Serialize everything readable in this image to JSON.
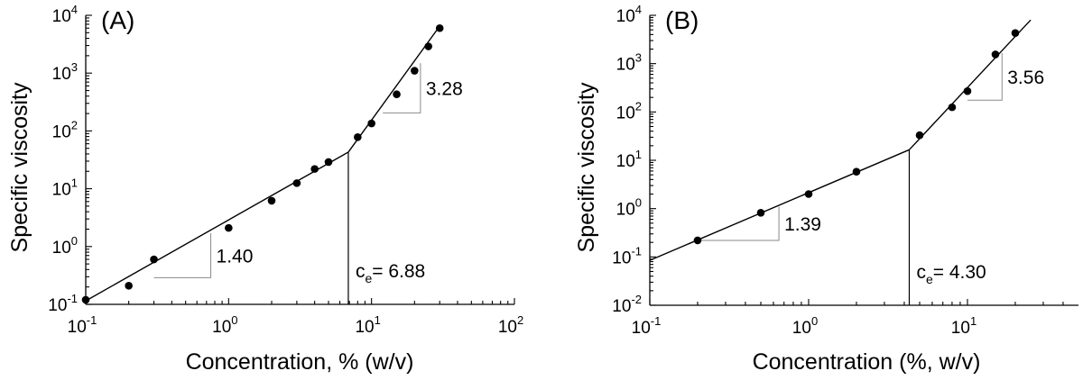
{
  "chart_data": [
    {
      "type": "scatter",
      "panel_label": "(A)",
      "xlabel": "Concentration, % (w/v)",
      "ylabel": "Specific viscosity",
      "xscale": "log",
      "yscale": "log",
      "xlim": [
        0.1,
        100
      ],
      "ylim": [
        0.1,
        10000
      ],
      "x_ticks": [
        {
          "base": "10",
          "exp": "-1"
        },
        {
          "base": "10",
          "exp": "0"
        },
        {
          "base": "10",
          "exp": "1"
        },
        {
          "base": "10",
          "exp": "2"
        }
      ],
      "y_ticks": [
        {
          "base": "10",
          "exp": "-1"
        },
        {
          "base": "10",
          "exp": "0"
        },
        {
          "base": "10",
          "exp": "1"
        },
        {
          "base": "10",
          "exp": "2"
        },
        {
          "base": "10",
          "exp": "3"
        },
        {
          "base": "10",
          "exp": "4"
        }
      ],
      "points": {
        "x": [
          0.1,
          0.2,
          0.3,
          1.0,
          2.0,
          3.0,
          4.0,
          5.0,
          8.0,
          10.0,
          15.0,
          20.0,
          25.0,
          30.0
        ],
        "y": [
          0.12,
          0.21,
          0.6,
          2.1,
          6.2,
          12.5,
          22,
          29,
          78,
          135,
          430,
          1100,
          2900,
          6000
        ]
      },
      "fits": [
        {
          "name": "dilute",
          "x": [
            0.1,
            6.88
          ],
          "y": [
            0.115,
            43
          ]
        },
        {
          "name": "entangled",
          "x": [
            6.88,
            30.0
          ],
          "y": [
            43,
            6500
          ]
        }
      ],
      "slopes": [
        {
          "label": "1.40",
          "x": [
            0.3,
            0.75
          ],
          "y": [
            0.29,
            1.7
          ]
        },
        {
          "label": "3.28",
          "x": [
            12.0,
            22.0
          ],
          "y": [
            205,
            1490
          ]
        }
      ],
      "ce": {
        "x": 6.88,
        "y": 43,
        "prefix": "c",
        "sub": "e",
        "text": "= 6.88"
      }
    },
    {
      "type": "scatter",
      "panel_label": "(B)",
      "xlabel": "Concentration (%, w/v)",
      "ylabel": "Specific viscosity",
      "xscale": "log",
      "yscale": "log",
      "xlim": [
        0.1,
        50
      ],
      "ylim": [
        0.01,
        10000
      ],
      "x_ticks": [
        {
          "base": "10",
          "exp": "-1"
        },
        {
          "base": "10",
          "exp": "0"
        },
        {
          "base": "10",
          "exp": "1"
        }
      ],
      "y_ticks": [
        {
          "base": "10",
          "exp": "-2"
        },
        {
          "base": "10",
          "exp": "-1"
        },
        {
          "base": "10",
          "exp": "0"
        },
        {
          "base": "10",
          "exp": "1"
        },
        {
          "base": "10",
          "exp": "2"
        },
        {
          "base": "10",
          "exp": "3"
        },
        {
          "base": "10",
          "exp": "4"
        }
      ],
      "points": {
        "x": [
          0.2,
          0.5,
          1.0,
          2.0,
          5.0,
          8.0,
          10.0,
          15.0,
          20.0
        ],
        "y": [
          0.22,
          0.82,
          2.0,
          5.8,
          33,
          125,
          270,
          1550,
          4300
        ]
      },
      "fits": [
        {
          "name": "dilute",
          "x": [
            0.1,
            4.3
          ],
          "y": [
            0.085,
            16.5
          ]
        },
        {
          "name": "entangled",
          "x": [
            4.3,
            25.0
          ],
          "y": [
            16.5,
            8000
          ]
        }
      ],
      "slopes": [
        {
          "label": "1.39",
          "x": [
            0.2,
            0.65
          ],
          "y": [
            0.22,
            1.1
          ]
        },
        {
          "label": "3.56",
          "x": [
            10.0,
            16.5
          ],
          "y": [
            175,
            1660
          ]
        }
      ],
      "ce": {
        "x": 4.3,
        "y": 16.5,
        "prefix": "c",
        "sub": "e",
        "text": "= 4.30"
      }
    }
  ]
}
